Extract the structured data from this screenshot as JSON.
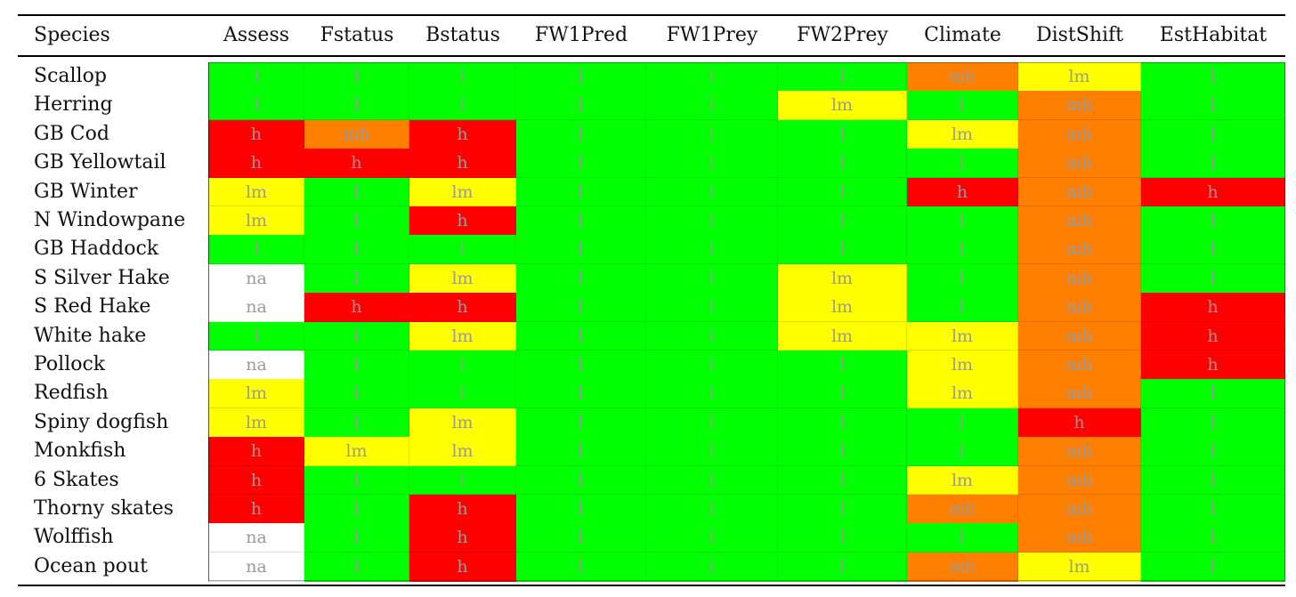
{
  "table": {
    "columns": [
      "Species",
      "Assess",
      "Fstatus",
      "Bstatus",
      "FW1Pred",
      "FW1Prey",
      "FW2Prey",
      "Climate",
      "DistShift",
      "EstHabitat"
    ],
    "colors": {
      "l": "#00ff00",
      "lm": "#ffff00",
      "mh": "#ff8000",
      "h": "#ff0000",
      "na": "#ffffff"
    },
    "rows": [
      {
        "species": "Scallop",
        "cells": [
          "l",
          "l",
          "l",
          "l",
          "l",
          "l",
          "mh",
          "lm",
          "l"
        ]
      },
      {
        "species": "Herring",
        "cells": [
          "l",
          "l",
          "l",
          "l",
          "l",
          "lm",
          "l",
          "mh",
          "l"
        ]
      },
      {
        "species": "GB Cod",
        "cells": [
          "h",
          "mh",
          "h",
          "l",
          "l",
          "l",
          "lm",
          "mh",
          "l"
        ]
      },
      {
        "species": "GB Yellowtail",
        "cells": [
          "h",
          "h",
          "h",
          "l",
          "l",
          "l",
          "l",
          "mh",
          "l"
        ]
      },
      {
        "species": "GB Winter",
        "cells": [
          "lm",
          "l",
          "lm",
          "l",
          "l",
          "l",
          "h",
          "mh",
          "h"
        ]
      },
      {
        "species": "N Windowpane",
        "cells": [
          "lm",
          "l",
          "h",
          "l",
          "l",
          "l",
          "l",
          "mh",
          "l"
        ]
      },
      {
        "species": "GB Haddock",
        "cells": [
          "l",
          "l",
          "l",
          "l",
          "l",
          "l",
          "l",
          "mh",
          "l"
        ]
      },
      {
        "species": "S Silver Hake",
        "cells": [
          "na",
          "l",
          "lm",
          "l",
          "l",
          "lm",
          "l",
          "mh",
          "l"
        ]
      },
      {
        "species": "S Red Hake",
        "cells": [
          "na",
          "h",
          "h",
          "l",
          "l",
          "lm",
          "l",
          "mh",
          "h"
        ]
      },
      {
        "species": "White hake",
        "cells": [
          "l",
          "l",
          "lm",
          "l",
          "l",
          "lm",
          "lm",
          "mh",
          "h"
        ]
      },
      {
        "species": "Pollock",
        "cells": [
          "na",
          "l",
          "l",
          "l",
          "l",
          "l",
          "lm",
          "mh",
          "h"
        ]
      },
      {
        "species": "Redfish",
        "cells": [
          "lm",
          "l",
          "l",
          "l",
          "l",
          "l",
          "lm",
          "mh",
          "l"
        ]
      },
      {
        "species": "Spiny dogfish",
        "cells": [
          "lm",
          "l",
          "lm",
          "l",
          "l",
          "l",
          "l",
          "h",
          "l"
        ]
      },
      {
        "species": "Monkfish",
        "cells": [
          "h",
          "lm",
          "lm",
          "l",
          "l",
          "l",
          "l",
          "mh",
          "l"
        ]
      },
      {
        "species": "6 Skates",
        "cells": [
          "h",
          "l",
          "l",
          "l",
          "l",
          "l",
          "lm",
          "mh",
          "l"
        ]
      },
      {
        "species": "Thorny skates",
        "cells": [
          "h",
          "l",
          "h",
          "l",
          "l",
          "l",
          "mh",
          "mh",
          "l"
        ]
      },
      {
        "species": "Wolffish",
        "cells": [
          "na",
          "l",
          "h",
          "l",
          "l",
          "l",
          "l",
          "mh",
          "l"
        ]
      },
      {
        "species": "Ocean pout",
        "cells": [
          "na",
          "l",
          "h",
          "l",
          "l",
          "l",
          "mh",
          "lm",
          "l"
        ]
      }
    ]
  }
}
